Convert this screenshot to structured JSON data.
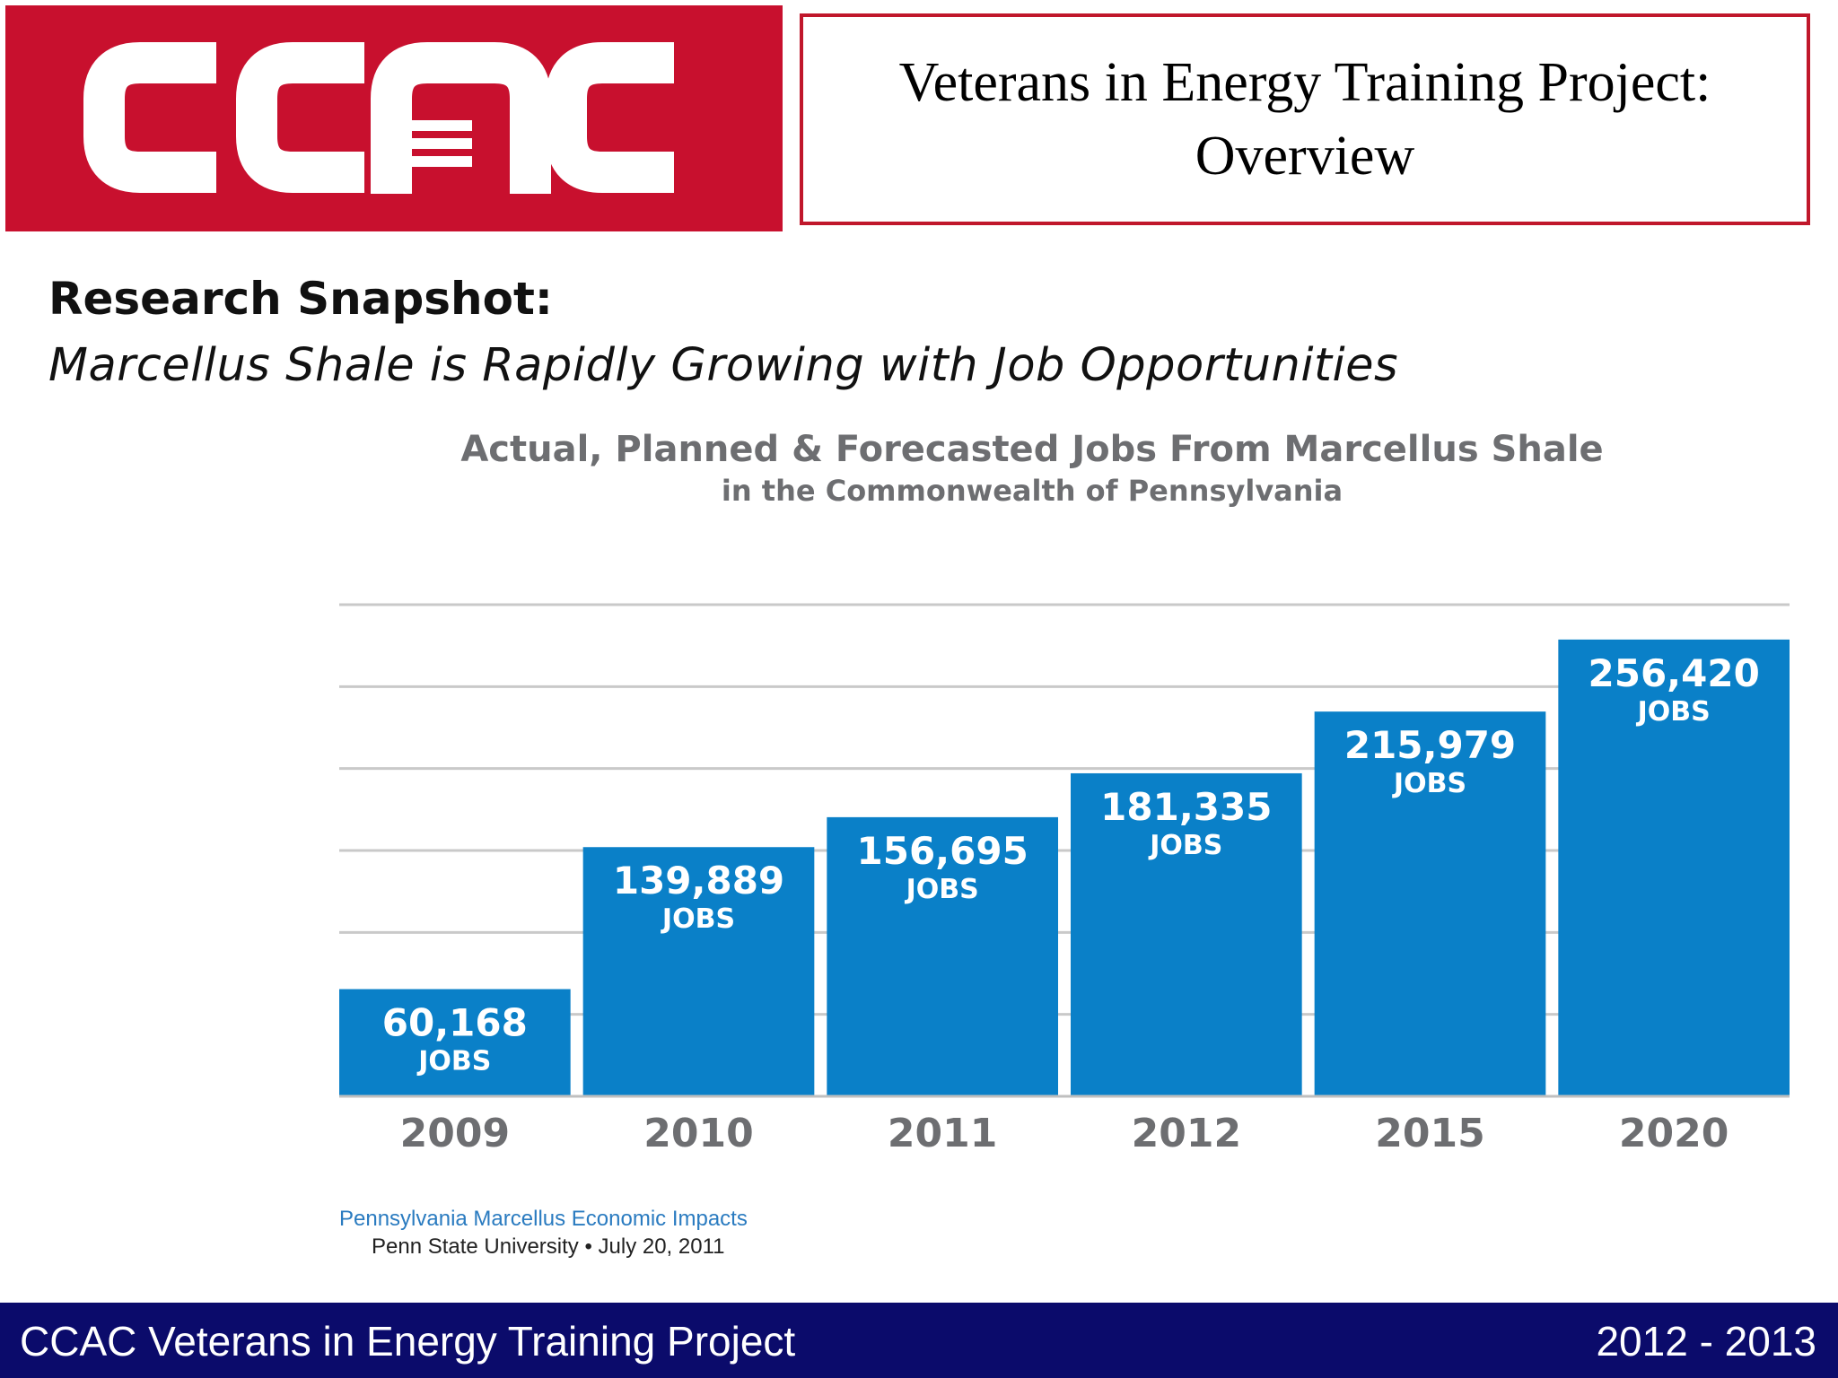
{
  "logo": {
    "text": "CCAC",
    "bg_color": "#c8102e"
  },
  "header": {
    "title_line1": "Veterans in Energy Training Project:",
    "title_line2": "Overview",
    "border_color": "#c0172b"
  },
  "snapshot": {
    "label": "Research Snapshot:",
    "subtitle": "Marcellus Shale is Rapidly Growing with Job Opportunities"
  },
  "chart_data": {
    "type": "bar",
    "title": "Actual, Planned & Forecasted Jobs From Marcellus Shale",
    "subtitle": "in the Commonwealth of Pennsylvania",
    "categories": [
      "2009",
      "2010",
      "2011",
      "2012",
      "2015",
      "2020"
    ],
    "values": [
      60168,
      139889,
      156695,
      181335,
      215979,
      256420
    ],
    "value_labels": [
      "60,168",
      "139,889",
      "156,695",
      "181,335",
      "215,979",
      "256,420"
    ],
    "unit_label": "JOBS",
    "bar_color": "#0a80c8",
    "grid": true,
    "xlabel": "",
    "ylabel": ""
  },
  "source": {
    "line1": "Pennsylvania Marcellus Economic Impacts",
    "line2": "Penn State University • July 20, 2011"
  },
  "footer": {
    "left": "CCAC Veterans in Energy Training Project",
    "right": "2012 - 2013",
    "bg_color": "#0b0b6b"
  }
}
